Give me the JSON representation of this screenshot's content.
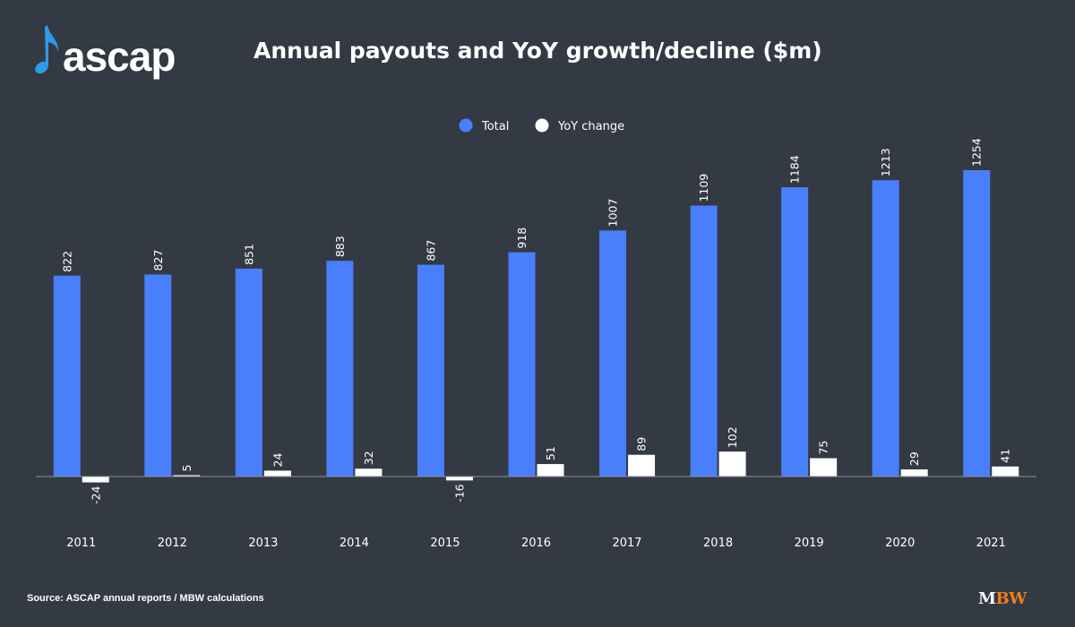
{
  "header": {
    "logo_text": "ascap",
    "title": "Annual payouts and YoY growth/decline ($m)"
  },
  "footer": {
    "source": "Source: ASCAP annual reports / MBW calculations",
    "brand_m": "M",
    "brand_bw": "BW"
  },
  "colors": {
    "background": "#343a44",
    "total": "#4a7ffc",
    "yoy": "#ffffff",
    "brand_accent": "#f07d19",
    "logo_note": "#2e9be8"
  },
  "chart_data": {
    "type": "bar",
    "categories": [
      "2011",
      "2012",
      "2013",
      "2014",
      "2015",
      "2016",
      "2017",
      "2018",
      "2019",
      "2020",
      "2021"
    ],
    "series": [
      {
        "name": "Total",
        "values": [
          822,
          827,
          851,
          883,
          867,
          918,
          1007,
          1109,
          1184,
          1213,
          1254
        ]
      },
      {
        "name": "YoY change",
        "values": [
          -24,
          5,
          24,
          32,
          -16,
          51,
          89,
          102,
          75,
          29,
          41
        ]
      }
    ],
    "title": "Annual payouts and YoY growth/decline ($m)",
    "xlabel": "",
    "ylabel": "",
    "ylim": [
      -24,
      1254
    ],
    "legend": "top-center",
    "grid": false,
    "data_labels": true
  }
}
